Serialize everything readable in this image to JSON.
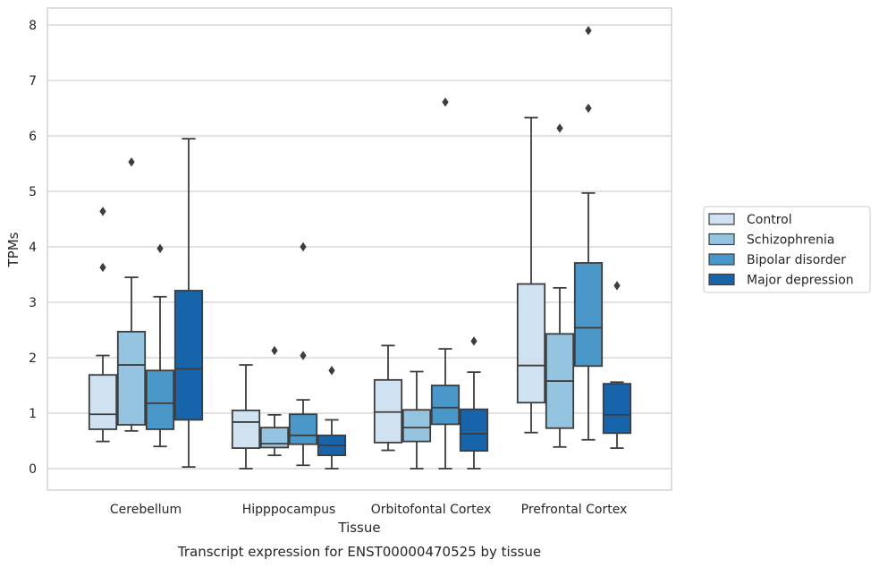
{
  "chart_data": {
    "type": "boxplot",
    "title": "",
    "caption": "Transcript expression for ENST00000470525 by tissue",
    "xlabel": "Tissue",
    "ylabel": "TPMs",
    "ylim": [
      -0.4,
      8.3
    ],
    "yticks": [
      0,
      1,
      2,
      3,
      4,
      5,
      6,
      7,
      8
    ],
    "grid": true,
    "legend_position": "right",
    "categories": [
      "Cerebellum",
      "Hipppocampus",
      "Orbitofontal Cortex",
      "Prefrontal Cortex"
    ],
    "series": [
      {
        "name": "Control",
        "color": "#d0e1f2",
        "boxes": [
          {
            "whisker_low": 0.49,
            "q1": 0.71,
            "median": 0.98,
            "q3": 1.69,
            "whisker_high": 2.04,
            "outliers": [
              3.63,
              4.64
            ]
          },
          {
            "whisker_low": 0.0,
            "q1": 0.37,
            "median": 0.84,
            "q3": 1.05,
            "whisker_high": 1.87,
            "outliers": []
          },
          {
            "whisker_low": 0.33,
            "q1": 0.47,
            "median": 1.02,
            "q3": 1.6,
            "whisker_high": 2.22,
            "outliers": []
          },
          {
            "whisker_low": 0.65,
            "q1": 1.19,
            "median": 1.86,
            "q3": 3.33,
            "whisker_high": 6.33,
            "outliers": []
          }
        ]
      },
      {
        "name": "Schizophrenia",
        "color": "#94c4df",
        "boxes": [
          {
            "whisker_low": 0.68,
            "q1": 0.79,
            "median": 1.87,
            "q3": 2.47,
            "whisker_high": 3.45,
            "outliers": [
              5.53
            ]
          },
          {
            "whisker_low": 0.24,
            "q1": 0.38,
            "median": 0.45,
            "q3": 0.74,
            "whisker_high": 0.97,
            "outliers": [
              2.13
            ]
          },
          {
            "whisker_low": 0.0,
            "q1": 0.49,
            "median": 0.74,
            "q3": 1.06,
            "whisker_high": 1.75,
            "outliers": []
          },
          {
            "whisker_low": 0.39,
            "q1": 0.73,
            "median": 1.58,
            "q3": 2.43,
            "whisker_high": 3.26,
            "outliers": [
              6.14
            ]
          }
        ]
      },
      {
        "name": "Bipolar disorder",
        "color": "#4a98c9",
        "boxes": [
          {
            "whisker_low": 0.4,
            "q1": 0.71,
            "median": 1.18,
            "q3": 1.77,
            "whisker_high": 3.1,
            "outliers": [
              3.97
            ]
          },
          {
            "whisker_low": 0.06,
            "q1": 0.44,
            "median": 0.6,
            "q3": 0.98,
            "whisker_high": 1.24,
            "outliers": [
              2.04,
              4.0
            ]
          },
          {
            "whisker_low": 0.0,
            "q1": 0.8,
            "median": 1.1,
            "q3": 1.5,
            "whisker_high": 2.16,
            "outliers": [
              6.61
            ]
          },
          {
            "whisker_low": 0.52,
            "q1": 1.85,
            "median": 2.54,
            "q3": 3.71,
            "whisker_high": 4.97,
            "outliers": [
              6.5,
              7.9
            ]
          }
        ]
      },
      {
        "name": "Major depression",
        "color": "#1764ab",
        "boxes": [
          {
            "whisker_low": 0.03,
            "q1": 0.88,
            "median": 1.8,
            "q3": 3.21,
            "whisker_high": 5.95,
            "outliers": []
          },
          {
            "whisker_low": 0.0,
            "q1": 0.24,
            "median": 0.42,
            "q3": 0.6,
            "whisker_high": 0.88,
            "outliers": [
              1.77
            ]
          },
          {
            "whisker_low": 0.0,
            "q1": 0.32,
            "median": 0.63,
            "q3": 1.07,
            "whisker_high": 1.74,
            "outliers": [
              2.3
            ]
          },
          {
            "whisker_low": 0.37,
            "q1": 0.64,
            "median": 0.97,
            "q3": 1.53,
            "whisker_high": 1.56,
            "outliers": [
              3.3
            ]
          }
        ]
      }
    ]
  }
}
